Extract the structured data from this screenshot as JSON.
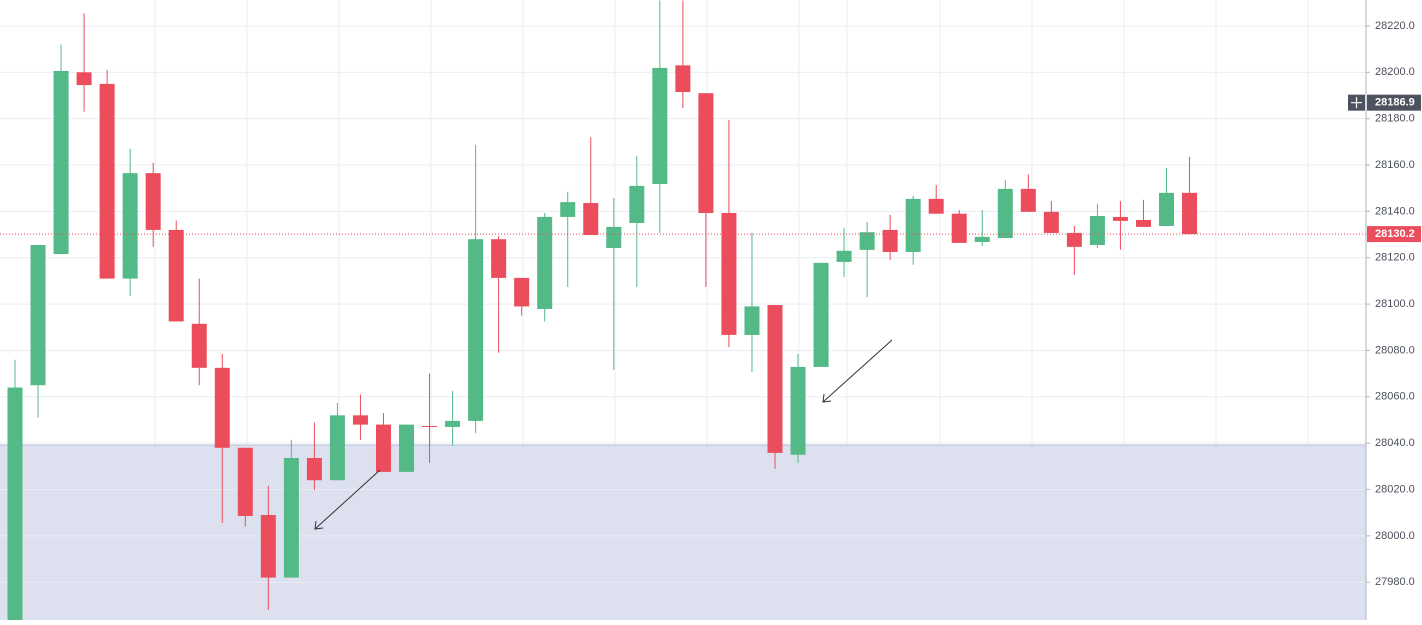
{
  "chart_data": {
    "type": "candlestick",
    "open": [
      27960,
      28065,
      28121.6,
      28200,
      28195,
      28111,
      28156.5,
      28132,
      28091.5,
      28072.5,
      28038,
      28009,
      27982,
      28033.6,
      28024,
      28052,
      28048,
      28027.6,
      28047.4,
      28047,
      28049.6,
      28128,
      28111.3,
      28097.9,
      28137.6,
      28143.6,
      28124.2,
      28135,
      28151.8,
      28203,
      28191,
      28139.3,
      28086.7,
      28099.6,
      28035,
      28072.9,
      28118.2,
      28123.4,
      28132,
      28122.5,
      28145.4,
      28139,
      28126.8,
      28128.5,
      28149.7,
      28139.8,
      28130.7,
      28125.5,
      28137.6,
      28136.3,
      28133.7,
      28148
    ],
    "high": [
      28076,
      28125.5,
      28212,
      28225.5,
      28201,
      28167,
      28161,
      28136,
      28111,
      28078.5,
      28038,
      28021.6,
      28041.4,
      28049,
      28057.4,
      28061,
      28053,
      28048,
      28070,
      28062.5,
      28168.7,
      28129.4,
      28111.3,
      28139.3,
      28148.4,
      28172,
      28145.8,
      28164,
      28231,
      28231,
      28191,
      28179.4,
      28130.7,
      28099.6,
      28078.5,
      28117.8,
      28132.9,
      28135.4,
      28138.5,
      28146.7,
      28151.4,
      28140.6,
      28140.6,
      28153.6,
      28156,
      28144.5,
      28133.7,
      28143.2,
      28144.5,
      28145,
      28158.7,
      28163.5
    ],
    "low": [
      27955,
      28051,
      28121.6,
      28183,
      28111,
      28103.5,
      28124.7,
      28092.5,
      28065,
      28005.6,
      28004,
      27968,
      27982,
      28019.8,
      28024,
      28041.4,
      28027.6,
      28027.6,
      28031.5,
      28038.8,
      28044.4,
      28079,
      28095,
      28092.5,
      28107.4,
      28129.8,
      28071.6,
      28107.4,
      28130.7,
      28184.6,
      28107.4,
      28081.5,
      28070.7,
      28028.9,
      28031.5,
      28072.9,
      28111.7,
      28103,
      28119,
      28117,
      28139,
      28126.4,
      28125,
      28128.5,
      28139.8,
      28130.7,
      28112.6,
      28124.2,
      28123.4,
      28133.3,
      28133.7,
      28130.2
    ],
    "close": [
      28064,
      28125.5,
      28200.6,
      28194.5,
      28111,
      28156.5,
      28132,
      28092.5,
      28072.5,
      28038,
      28008.6,
      27982,
      28033.6,
      28024,
      28052,
      28048,
      28027.6,
      28048,
      28047,
      28049.6,
      28128,
      28111.3,
      28099,
      28137.6,
      28144,
      28129.8,
      28133.3,
      28151,
      28201.9,
      28191.5,
      28139.3,
      28086.7,
      28099,
      28035.8,
      28072.9,
      28117.8,
      28123,
      28131,
      28122.5,
      28145.4,
      28139,
      28126.4,
      28129,
      28149.7,
      28139.8,
      28130.7,
      28124.7,
      28138,
      28135.9,
      28133.3,
      28148,
      28130.2
    ],
    "up_color": "#53b987",
    "down_color": "#eb4d5c",
    "ylim": [
      27963.7,
      28231.2
    ],
    "yticks": [
      {
        "value": 27980,
        "label": "27980.0"
      },
      {
        "value": 28000,
        "label": "28000.0"
      },
      {
        "value": 28020,
        "label": "28020.0"
      },
      {
        "value": 28040,
        "label": "28040.0"
      },
      {
        "value": 28060,
        "label": "28060.0"
      },
      {
        "value": 28080,
        "label": "28080.0"
      },
      {
        "value": 28100,
        "label": "28100.0"
      },
      {
        "value": 28120,
        "label": "28120.0"
      },
      {
        "value": 28140,
        "label": "28140.0"
      },
      {
        "value": 28160,
        "label": "28160.0"
      },
      {
        "value": 28180,
        "label": "28180.0"
      },
      {
        "value": 28200,
        "label": "28200.0"
      },
      {
        "value": 28220,
        "label": "28220.0"
      }
    ],
    "grid": true,
    "last_price": 28130.2,
    "last_price_color": "#eb4d5c",
    "crosshair_price": 28186.9,
    "zone_top": 28039.2,
    "zone_color": "#dde1ef"
  }
}
